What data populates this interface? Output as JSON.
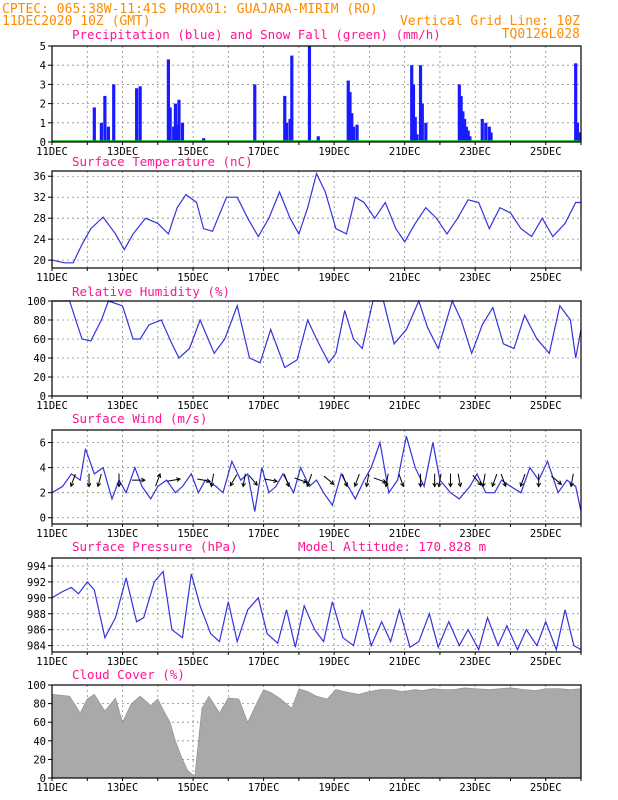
{
  "header": {
    "line1_left": "CPTEC:   065:38W-11:41S  PROX01: GUAJARA-MIRIM (RO)",
    "line2_left": "11DEC2020 10Z (GMT)",
    "line2_right": "Vertical Grid Line: 10Z",
    "line3_right": "TQ0126L028"
  },
  "x_axis_labels": [
    "11DEC",
    "13DEC",
    "15DEC",
    "17DEC",
    "19DEC",
    "21DEC",
    "23DEC",
    "25DEC"
  ],
  "colors": {
    "line": "#3333dd",
    "snow": "#00bb00",
    "cloud": "#a9a9a9",
    "title": "#ff1493",
    "header": "#ff8c00",
    "grid": "#8a8a8a"
  },
  "chart_data": [
    {
      "type": "bar",
      "title": "Precipitation (blue) and Snow Fall (green) (mm/h)",
      "ylim": [
        0,
        5
      ],
      "yticks": [
        "0",
        "1",
        "2",
        "3",
        "4",
        "5"
      ],
      "series": [
        {
          "name": "Precipitation",
          "color": "#1a1aff",
          "x": [
            1.2,
            1.4,
            1.5,
            1.6,
            1.75,
            2.4,
            2.5,
            3.3,
            3.35,
            3.45,
            3.5,
            3.55,
            3.6,
            3.7,
            4.3,
            5.75,
            6.6,
            6.65,
            6.75,
            6.8,
            7.3,
            7.55,
            8.4,
            8.45,
            8.5,
            8.55,
            8.65,
            10.2,
            10.25,
            10.3,
            10.35,
            10.45,
            10.5,
            10.6,
            11.55,
            11.6,
            11.65,
            11.7,
            11.75,
            11.8,
            11.85,
            12.2,
            12.3,
            12.4,
            12.45,
            14.85,
            14.9,
            14.95
          ],
          "values": [
            1.8,
            1.0,
            2.4,
            0.8,
            3.0,
            2.8,
            2.9,
            4.3,
            1.8,
            0.8,
            2.0,
            0.9,
            2.2,
            1.0,
            0.2,
            3.0,
            2.4,
            1.0,
            1.2,
            4.5,
            5.0,
            0.3,
            3.2,
            2.6,
            1.5,
            0.8,
            0.9,
            4.0,
            3.0,
            1.3,
            0.4,
            4.0,
            2.0,
            1.0,
            3.0,
            2.4,
            1.6,
            1.2,
            0.8,
            0.6,
            0.3,
            1.2,
            1.0,
            0.8,
            0.5,
            4.1,
            1.0,
            0.5
          ]
        },
        {
          "name": "Snow Fall",
          "color": "#00bb00",
          "x": [],
          "values": []
        }
      ]
    },
    {
      "type": "line",
      "title": "Surface Temperature (nC)",
      "ylim": [
        18.5,
        37
      ],
      "yticks": [
        "20",
        "24",
        "28",
        "32",
        "36"
      ],
      "series": [
        {
          "name": "Temperature",
          "x": [
            0,
            0.35,
            0.6,
            0.85,
            1.1,
            1.45,
            1.8,
            2.05,
            2.3,
            2.65,
            3.0,
            3.3,
            3.55,
            3.8,
            4.1,
            4.3,
            4.55,
            4.95,
            5.25,
            5.55,
            5.85,
            6.15,
            6.45,
            6.75,
            7.0,
            7.25,
            7.5,
            7.75,
            8.05,
            8.35,
            8.6,
            8.85,
            9.15,
            9.45,
            9.75,
            10.0,
            10.3,
            10.6,
            10.9,
            11.2,
            11.5,
            11.8,
            12.1,
            12.4,
            12.7,
            13.0,
            13.3,
            13.6,
            13.9,
            14.2,
            14.55,
            14.85,
            15.0
          ],
          "values": [
            20,
            19.5,
            19.5,
            23,
            26,
            28.2,
            25,
            22,
            25,
            28,
            27,
            25,
            30,
            32.5,
            31,
            26,
            25.5,
            32,
            32,
            28,
            24.5,
            28,
            33,
            28,
            25,
            30,
            36.5,
            33,
            26,
            25,
            32,
            31,
            28,
            31,
            26,
            23.5,
            27,
            30,
            28,
            25,
            28,
            31.5,
            31,
            26,
            30,
            29,
            26,
            24.5,
            28,
            24.5,
            27,
            31,
            31
          ]
        }
      ]
    },
    {
      "type": "line",
      "title": "Relative Humidity (%)",
      "ylim": [
        0,
        100
      ],
      "yticks": [
        "0",
        "20",
        "40",
        "60",
        "80",
        "100"
      ],
      "series": [
        {
          "name": "Relative Humidity",
          "x": [
            0,
            0.5,
            0.85,
            1.1,
            1.4,
            1.6,
            2.0,
            2.3,
            2.5,
            2.75,
            3.1,
            3.4,
            3.6,
            3.9,
            4.2,
            4.6,
            4.9,
            5.25,
            5.6,
            5.9,
            6.2,
            6.6,
            6.95,
            7.25,
            7.5,
            7.85,
            8.05,
            8.3,
            8.55,
            8.8,
            9.1,
            9.4,
            9.7,
            10.05,
            10.4,
            10.65,
            10.95,
            11.35,
            11.6,
            11.9,
            12.2,
            12.5,
            12.8,
            13.1,
            13.4,
            13.75,
            14.1,
            14.4,
            14.7,
            14.85,
            15.0
          ],
          "values": [
            100,
            100,
            60,
            58,
            80,
            100,
            95,
            60,
            60,
            75,
            80,
            55,
            40,
            50,
            80,
            45,
            60,
            95,
            40,
            35,
            70,
            30,
            38,
            80,
            60,
            35,
            45,
            90,
            60,
            50,
            100,
            100,
            55,
            70,
            100,
            72,
            50,
            100,
            80,
            45,
            75,
            93,
            55,
            50,
            85,
            60,
            45,
            95,
            80,
            40,
            70
          ]
        }
      ]
    },
    {
      "type": "line",
      "title": "Surface Wind (m/s)",
      "ylim": [
        -0.5,
        7
      ],
      "yticks": [
        "0",
        "2",
        "4",
        "6"
      ],
      "series": [
        {
          "name": "Wind Speed",
          "x": [
            0,
            0.3,
            0.55,
            0.8,
            0.95,
            1.2,
            1.45,
            1.7,
            1.9,
            2.1,
            2.35,
            2.55,
            2.8,
            3.0,
            3.25,
            3.5,
            3.7,
            3.95,
            4.15,
            4.35,
            4.65,
            4.85,
            5.1,
            5.35,
            5.55,
            5.75,
            5.95,
            6.15,
            6.35,
            6.55,
            6.85,
            7.05,
            7.3,
            7.5,
            7.7,
            7.95,
            8.2,
            8.4,
            8.6,
            8.85,
            9.05,
            9.3,
            9.55,
            9.8,
            10.05,
            10.3,
            10.55,
            10.8,
            11.0,
            11.3,
            11.55,
            11.85,
            12.05,
            12.3,
            12.55,
            12.75,
            13.0,
            13.3,
            13.55,
            13.8,
            14.05,
            14.35,
            14.6,
            14.85,
            15.0
          ],
          "values": [
            2,
            2.5,
            3.5,
            3,
            5.5,
            3.5,
            4,
            1.5,
            3,
            2,
            4,
            2.5,
            1.5,
            2.5,
            3,
            2,
            2.5,
            3.5,
            2,
            3,
            2.5,
            2,
            4.5,
            3,
            3.5,
            0.5,
            4,
            2,
            2.5,
            3.5,
            2,
            4,
            2.5,
            3,
            2,
            1,
            3.5,
            2.5,
            1.5,
            3,
            4,
            6,
            2,
            3,
            6.5,
            4,
            2.5,
            6,
            3,
            2,
            1.5,
            2.5,
            3.5,
            2,
            2,
            3,
            2.5,
            2,
            4,
            3,
            4.5,
            2,
            3,
            2.5,
            0.5
          ]
        }
      ],
      "arrow_x": [
        0.6,
        1.05,
        1.35,
        1.9,
        2.45,
        3.0,
        3.45,
        4.3,
        4.55,
        5.15,
        5.45,
        5.7,
        6.2,
        6.65,
        7.05,
        7.3,
        7.85,
        8.3,
        8.65,
        8.95,
        9.3,
        9.5,
        9.9,
        10.45,
        10.85,
        11.0,
        11.3,
        11.55,
        12.05,
        12.25,
        12.55,
        12.8,
        13.35,
        13.8,
        14.3,
        14.75
      ],
      "arrow_dir": [
        200,
        180,
        195,
        180,
        90,
        20,
        80,
        100,
        190,
        210,
        190,
        140,
        100,
        160,
        110,
        200,
        130,
        160,
        200,
        190,
        110,
        190,
        160,
        180,
        180,
        190,
        180,
        170,
        140,
        190,
        200,
        160,
        200,
        180,
        130,
        190
      ]
    },
    {
      "type": "line",
      "title": "Surface Pressure (hPa)",
      "annotation": "Model Altitude: 170.828 m",
      "ylim": [
        983.2,
        995
      ],
      "yticks": [
        "984",
        "986",
        "988",
        "990",
        "992",
        "994"
      ],
      "series": [
        {
          "name": "Pressure",
          "x": [
            0,
            0.3,
            0.55,
            0.75,
            1.0,
            1.2,
            1.5,
            1.8,
            2.1,
            2.4,
            2.6,
            2.9,
            3.15,
            3.4,
            3.7,
            3.95,
            4.2,
            4.5,
            4.75,
            5.0,
            5.25,
            5.55,
            5.85,
            6.1,
            6.4,
            6.65,
            6.9,
            7.15,
            7.45,
            7.7,
            7.95,
            8.25,
            8.55,
            8.8,
            9.05,
            9.35,
            9.6,
            9.85,
            10.15,
            10.4,
            10.7,
            10.95,
            11.25,
            11.55,
            11.8,
            12.1,
            12.35,
            12.65,
            12.9,
            13.2,
            13.45,
            13.75,
            14.0,
            14.3,
            14.55,
            14.8,
            15.0
          ],
          "values": [
            990,
            990.8,
            991.3,
            990.5,
            992,
            991,
            985,
            987.5,
            992.5,
            987,
            987.5,
            992,
            993.3,
            986,
            985,
            993,
            989,
            985.5,
            984.5,
            989.5,
            984.5,
            988.5,
            990,
            985.5,
            984.3,
            988.5,
            983.8,
            989,
            986,
            984.5,
            989.5,
            985,
            984,
            988.5,
            984,
            987,
            984.5,
            988.5,
            983.8,
            984.5,
            988,
            983.8,
            987,
            984,
            986,
            983.5,
            987.5,
            984,
            986.5,
            983.5,
            986,
            984,
            987,
            983.5,
            988.5,
            984,
            983.5
          ]
        }
      ]
    },
    {
      "type": "area",
      "title": "Cloud Cover (%)",
      "ylim": [
        0,
        100
      ],
      "yticks": [
        "0",
        "20",
        "40",
        "60",
        "80",
        "100"
      ],
      "series": [
        {
          "name": "Cloud Cover",
          "x": [
            0,
            0.5,
            0.8,
            1.0,
            1.2,
            1.5,
            1.8,
            2.0,
            2.25,
            2.5,
            2.8,
            3.0,
            3.2,
            3.35,
            3.5,
            3.7,
            3.85,
            4.05,
            4.25,
            4.45,
            4.75,
            5.0,
            5.3,
            5.55,
            5.8,
            6.0,
            6.2,
            6.45,
            6.8,
            7.0,
            7.25,
            7.5,
            7.8,
            8.05,
            8.4,
            8.7,
            9.0,
            9.3,
            9.6,
            9.95,
            10.3,
            10.5,
            10.8,
            11.1,
            11.4,
            11.7,
            12.0,
            12.4,
            12.7,
            13.0,
            13.4,
            13.7,
            14.0,
            14.4,
            14.7,
            15.0
          ],
          "values": [
            90,
            88,
            70,
            85,
            90,
            72,
            86,
            60,
            80,
            88,
            78,
            85,
            70,
            60,
            40,
            20,
            8,
            2,
            75,
            88,
            70,
            86,
            85,
            60,
            80,
            95,
            92,
            86,
            75,
            96,
            93,
            88,
            85,
            95,
            92,
            90,
            93,
            95,
            95,
            93,
            95,
            94,
            96,
            95,
            95,
            97,
            96,
            95,
            96,
            97,
            95,
            94,
            96,
            96,
            95,
            96
          ]
        }
      ]
    }
  ]
}
